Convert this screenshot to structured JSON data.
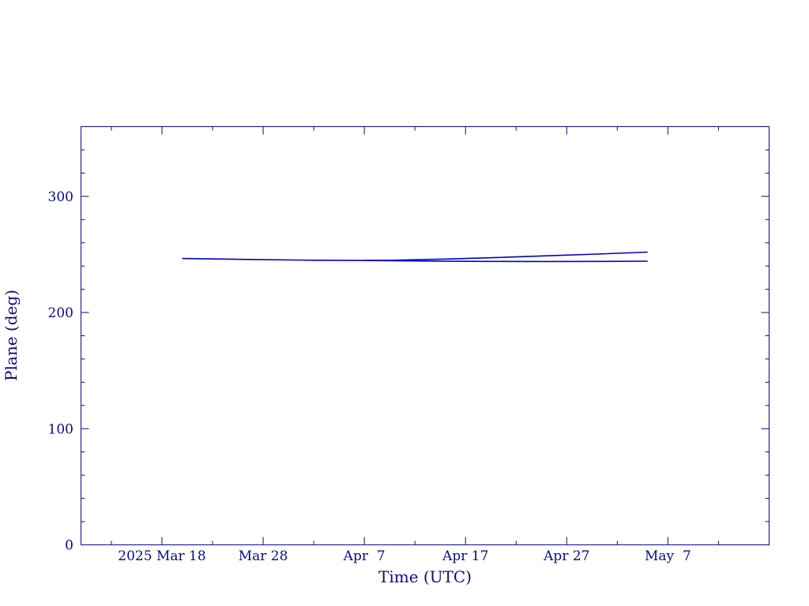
{
  "chart_data": {
    "type": "line",
    "title": "",
    "xlabel": "Time (UTC)",
    "ylabel": "Plane (deg)",
    "x_range": [
      "2025-03-10",
      "2025-05-17"
    ],
    "ylim": [
      0,
      360
    ],
    "grid": false,
    "x_ticks": [
      {
        "date": "2025-03-18",
        "label": "2025 Mar 18"
      },
      {
        "date": "2025-03-28",
        "label": "Mar 28"
      },
      {
        "date": "2025-04-07",
        "label": "Apr  7"
      },
      {
        "date": "2025-04-17",
        "label": "Apr 17"
      },
      {
        "date": "2025-04-27",
        "label": "Apr 27"
      },
      {
        "date": "2025-05-07",
        "label": "May  7"
      }
    ],
    "x_minor_ticks": [
      "2025-03-13",
      "2025-03-23",
      "2025-04-02",
      "2025-04-12",
      "2025-04-22",
      "2025-05-02",
      "2025-05-12"
    ],
    "y_ticks": [
      0,
      100,
      200,
      300
    ],
    "y_minor_ticks": [
      20,
      40,
      60,
      80,
      120,
      140,
      160,
      180,
      220,
      240,
      260,
      280,
      320,
      340
    ],
    "series": [
      {
        "color": "#0000cc",
        "points": [
          {
            "x": "2025-03-20",
            "y": 246.5
          },
          {
            "x": "2025-03-24",
            "y": 246.0
          },
          {
            "x": "2025-03-28",
            "y": 245.5
          },
          {
            "x": "2025-04-02",
            "y": 245.0
          },
          {
            "x": "2025-04-07",
            "y": 244.8
          },
          {
            "x": "2025-04-10",
            "y": 245.0
          },
          {
            "x": "2025-04-15",
            "y": 246.0
          },
          {
            "x": "2025-04-20",
            "y": 247.3
          },
          {
            "x": "2025-04-25",
            "y": 248.8
          },
          {
            "x": "2025-04-30",
            "y": 250.3
          },
          {
            "x": "2025-05-05",
            "y": 252.0
          }
        ]
      },
      {
        "color": "#0000cc",
        "points": [
          {
            "x": "2025-04-07",
            "y": 244.8
          },
          {
            "x": "2025-04-13",
            "y": 244.3
          },
          {
            "x": "2025-04-19",
            "y": 244.0
          },
          {
            "x": "2025-04-25",
            "y": 243.9
          },
          {
            "x": "2025-04-30",
            "y": 244.0
          },
          {
            "x": "2025-05-05",
            "y": 244.2
          }
        ]
      }
    ]
  }
}
